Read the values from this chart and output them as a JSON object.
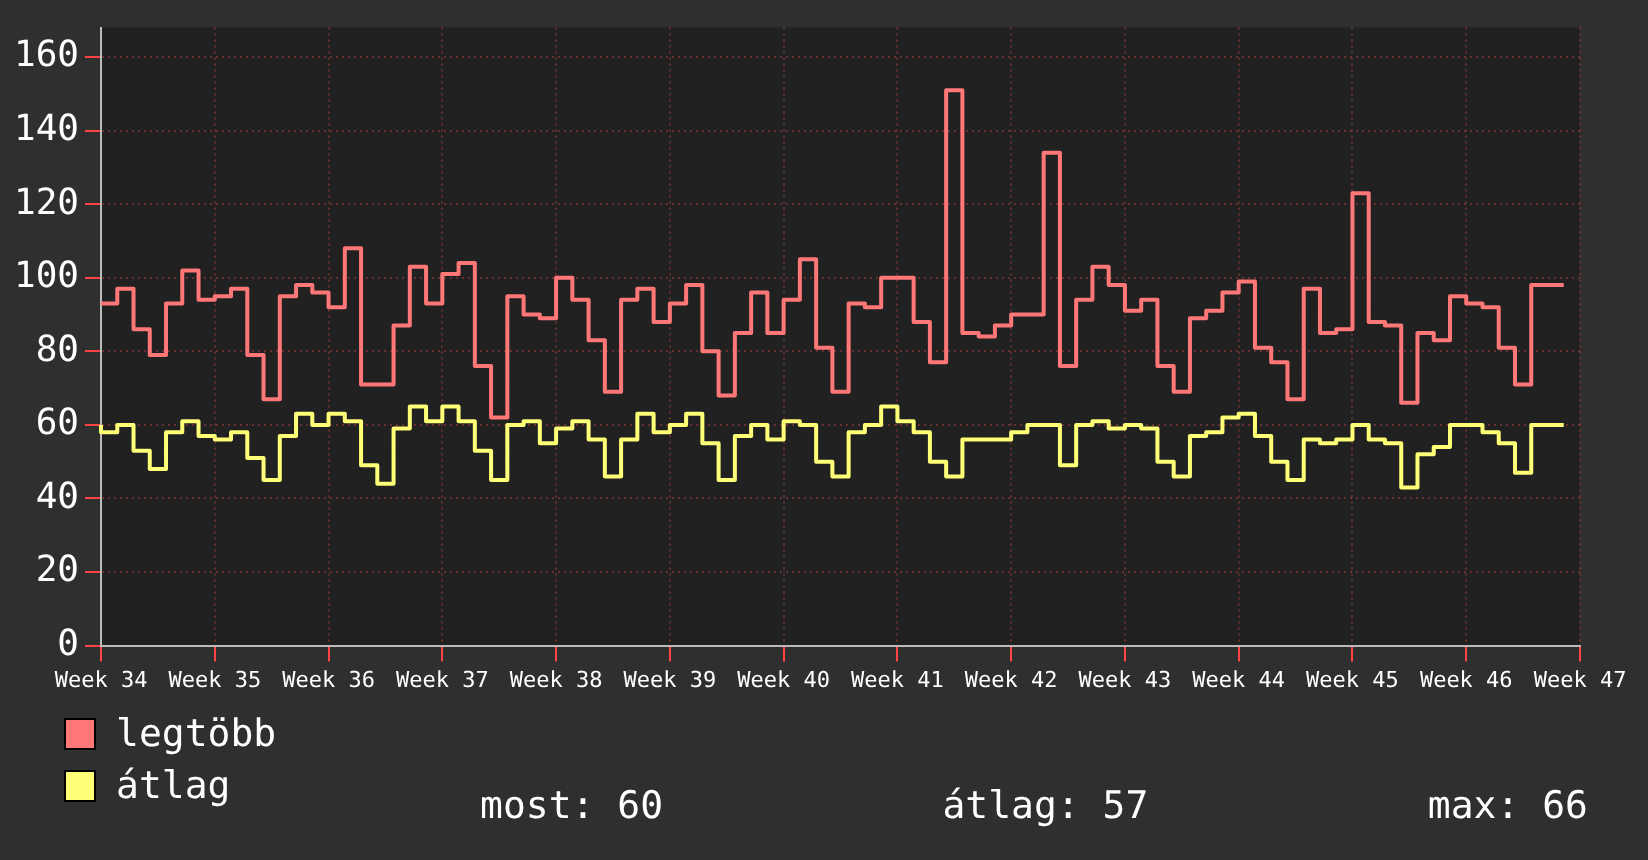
{
  "chart_data": {
    "type": "step",
    "categories": [
      "Week 34",
      null,
      null,
      null,
      null,
      null,
      null,
      "Week 35",
      null,
      null,
      null,
      null,
      null,
      null,
      "Week 36",
      null,
      null,
      null,
      null,
      null,
      null,
      "Week 37",
      null,
      null,
      null,
      null,
      null,
      null,
      "Week 38",
      null,
      null,
      null,
      null,
      null,
      null,
      "Week 39",
      null,
      null,
      null,
      null,
      null,
      null,
      "Week 40",
      null,
      null,
      null,
      null,
      null,
      null,
      "Week 41",
      null,
      null,
      null,
      null,
      null,
      null,
      "Week 42",
      null,
      null,
      null,
      null,
      null,
      null,
      "Week 43",
      null,
      null,
      null,
      null,
      null,
      null,
      "Week 44",
      null,
      null,
      null,
      null,
      null,
      null,
      "Week 45",
      null,
      null,
      null,
      null,
      null,
      null,
      "Week 46",
      null,
      null,
      null,
      null,
      null,
      null,
      "Week 47"
    ],
    "series": [
      {
        "name": "legtöbb",
        "color": "#ff7777",
        "values": [
          93,
          93,
          97,
          86,
          79,
          93,
          102,
          94,
          95,
          97,
          79,
          67,
          95,
          98,
          96,
          92,
          108,
          71,
          71,
          87,
          103,
          93,
          101,
          104,
          76,
          62,
          95,
          90,
          89,
          100,
          94,
          83,
          69,
          94,
          97,
          88,
          93,
          98,
          80,
          68,
          85,
          96,
          85,
          94,
          105,
          81,
          69,
          93,
          92,
          100,
          100,
          88,
          77,
          151,
          85,
          84,
          87,
          90,
          90,
          134,
          76,
          94,
          103,
          98,
          91,
          94,
          76,
          69,
          89,
          91,
          96,
          99,
          81,
          77,
          67,
          97,
          85,
          86,
          123,
          88,
          87,
          66,
          85,
          83,
          95,
          93,
          92,
          81,
          71,
          98,
          98,
          null
        ]
      },
      {
        "name": "átlag",
        "color": "#ffff77",
        "values": [
          60,
          58,
          60,
          53,
          48,
          58,
          61,
          57,
          56,
          58,
          51,
          45,
          57,
          63,
          60,
          63,
          61,
          49,
          44,
          59,
          65,
          61,
          65,
          61,
          53,
          45,
          60,
          61,
          55,
          59,
          61,
          56,
          46,
          56,
          63,
          58,
          60,
          63,
          55,
          45,
          57,
          60,
          56,
          61,
          60,
          50,
          46,
          58,
          60,
          65,
          61,
          58,
          50,
          46,
          56,
          56,
          56,
          58,
          60,
          60,
          49,
          60,
          61,
          59,
          60,
          59,
          50,
          46,
          57,
          58,
          62,
          63,
          57,
          50,
          45,
          56,
          55,
          56,
          60,
          56,
          55,
          43,
          52,
          54,
          60,
          60,
          58,
          55,
          47,
          60,
          60,
          null
        ]
      }
    ],
    "ylim": [
      0,
      168
    ],
    "yticks": [
      0,
      20,
      40,
      60,
      80,
      100,
      120,
      140,
      160
    ],
    "grid": true,
    "legend": "bottom left",
    "annotations": [
      "most: 60",
      "átlag: 57",
      "max: 66"
    ]
  }
}
